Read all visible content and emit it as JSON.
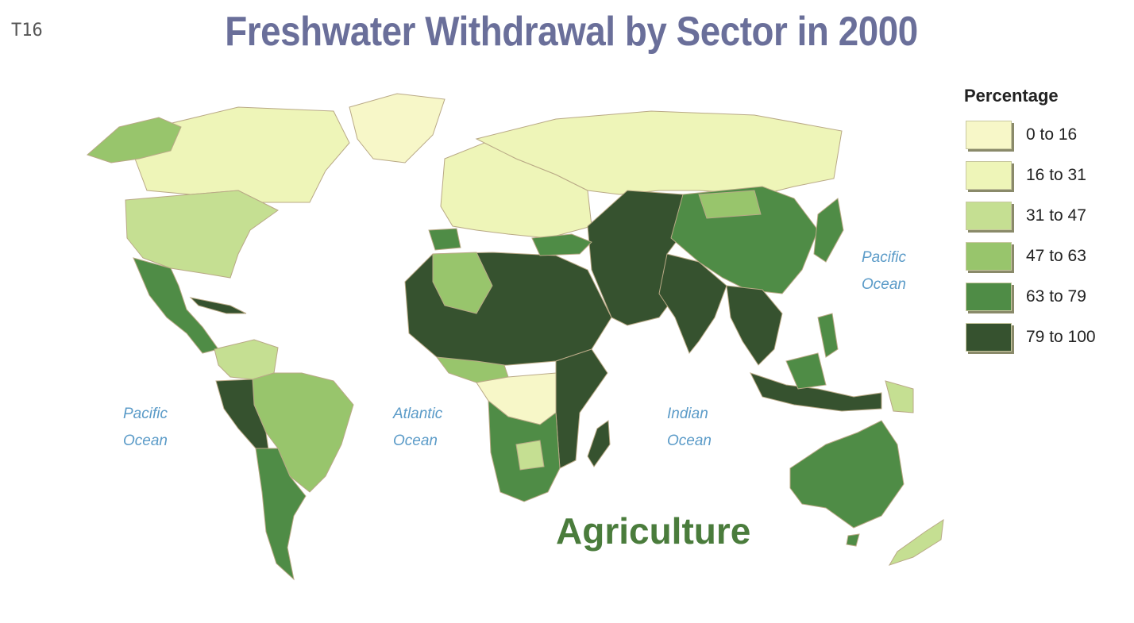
{
  "slide_label": "T16",
  "title": "Freshwater Withdrawal by Sector in 2000",
  "sector": "Agriculture",
  "legend": {
    "title": "Percentage",
    "classes": [
      {
        "label": "0 to 16",
        "color": "#f7f7c8"
      },
      {
        "label": "16 to 31",
        "color": "#eef5b8"
      },
      {
        "label": "31 to 47",
        "color": "#c5df92"
      },
      {
        "label": "47 to 63",
        "color": "#98c56c"
      },
      {
        "label": "63 to 79",
        "color": "#4f8c46"
      },
      {
        "label": "79 to 100",
        "color": "#36522f"
      }
    ]
  },
  "ocean_labels": [
    {
      "id": "pacific-east",
      "lines": [
        "Pacific",
        "Ocean"
      ]
    },
    {
      "id": "pacific-west",
      "lines": [
        "Pacific",
        "Ocean"
      ]
    },
    {
      "id": "atlantic",
      "lines": [
        "Atlantic",
        "Ocean"
      ]
    },
    {
      "id": "indian",
      "lines": [
        "Indian",
        "Ocean"
      ]
    }
  ]
}
